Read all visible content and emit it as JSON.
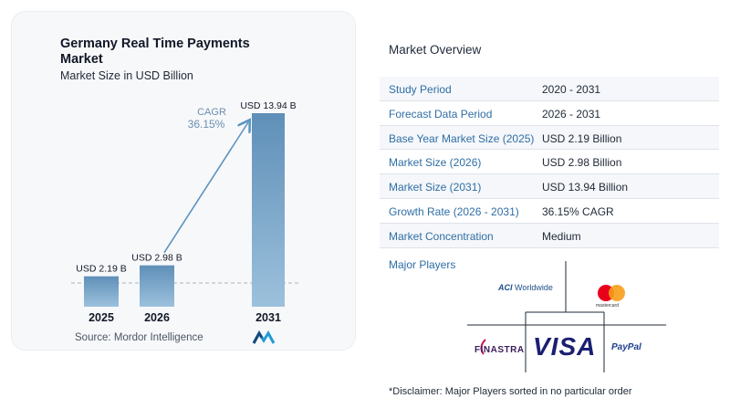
{
  "chart": {
    "title": "Germany Real Time Payments Market",
    "subtitle": "Market Size in USD Billion",
    "cagr_label": "CAGR",
    "cagr_value": "36.15%",
    "source": "Source:  Mordor Intelligence"
  },
  "chart_data": {
    "type": "bar",
    "title": "Germany Real Time Payments Market",
    "subtitle": "Market Size in USD Billion",
    "categories": [
      "2025",
      "2026",
      "2031"
    ],
    "values": [
      2.19,
      2.98,
      13.94
    ],
    "data_labels": [
      "USD 2.19 B",
      "USD 2.98 B",
      "USD 13.94 B"
    ],
    "ylim": [
      0,
      14.5
    ],
    "bar_color": "#6f9cc0",
    "annotation": {
      "text": "CAGR",
      "value": "36.15%",
      "from": "2026",
      "to": "2031"
    },
    "grid": false
  },
  "overview": {
    "title": "Market Overview",
    "rows": [
      {
        "label": "Study Period",
        "value": "2020 - 2031"
      },
      {
        "label": "Forecast Data Period",
        "value": "2026 - 2031"
      },
      {
        "label": "Base Year Market Size (2025)",
        "value": "USD 2.19 Billion"
      },
      {
        "label": "Market Size (2026)",
        "value": "USD 2.98 Billion"
      },
      {
        "label": "Market Size (2031)",
        "value": "USD 13.94 Billion"
      },
      {
        "label": "Growth Rate (2026 - 2031)",
        "value": "36.15% CAGR"
      },
      {
        "label": "Market Concentration",
        "value": "Medium"
      }
    ]
  },
  "players": {
    "title": "Major Players",
    "aci_brand": "ACI",
    "aci_suffix": "Worldwide",
    "mastercard": "mastercard",
    "visa": "VISA",
    "finastra": "FINASTRA",
    "paypal": "PayPal"
  },
  "disclaimer": "*Disclaimer: Major Players sorted in no particular order",
  "colors": {
    "accent": "#2f6ea5",
    "bar": "#6f9cc0",
    "arrow": "#5b94c2"
  }
}
